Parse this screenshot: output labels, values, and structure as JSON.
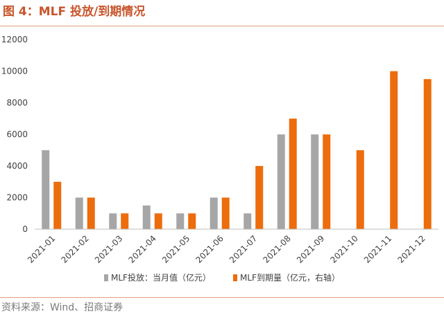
{
  "header": {
    "title": "图 4：MLF 投放/到期情况"
  },
  "footer": {
    "source": "资料来源：Wind、招商证券"
  },
  "colors": {
    "series1": "#a6a6a6",
    "series2": "#ed6c0c",
    "accent": "#c8552b"
  },
  "chart_data": {
    "type": "bar",
    "title": "",
    "xlabel": "",
    "ylabel": "",
    "categories": [
      "2021-01",
      "2021-02",
      "2021-03",
      "2021-04",
      "2021-05",
      "2021-06",
      "2021-07",
      "2021-08",
      "2021-09",
      "2021-10",
      "2021-11",
      "2021-12"
    ],
    "ylim": [
      0,
      12000
    ],
    "yticks": [
      "0",
      "2000",
      "4000",
      "6000",
      "8000",
      "10000",
      "12000"
    ],
    "grid": false,
    "legend_position": "bottom",
    "series": [
      {
        "name": "MLF投放：当月值（亿元）",
        "color": "#a6a6a6",
        "values": [
          5000,
          2000,
          1000,
          1500,
          1000,
          2000,
          1000,
          6000,
          6000,
          null,
          null,
          null
        ]
      },
      {
        "name": "MLF到期量（亿元，右轴）",
        "color": "#ed6c0c",
        "values": [
          3000,
          2000,
          1000,
          1000,
          1000,
          2000,
          4000,
          7000,
          6000,
          5000,
          10000,
          9500
        ]
      }
    ]
  }
}
